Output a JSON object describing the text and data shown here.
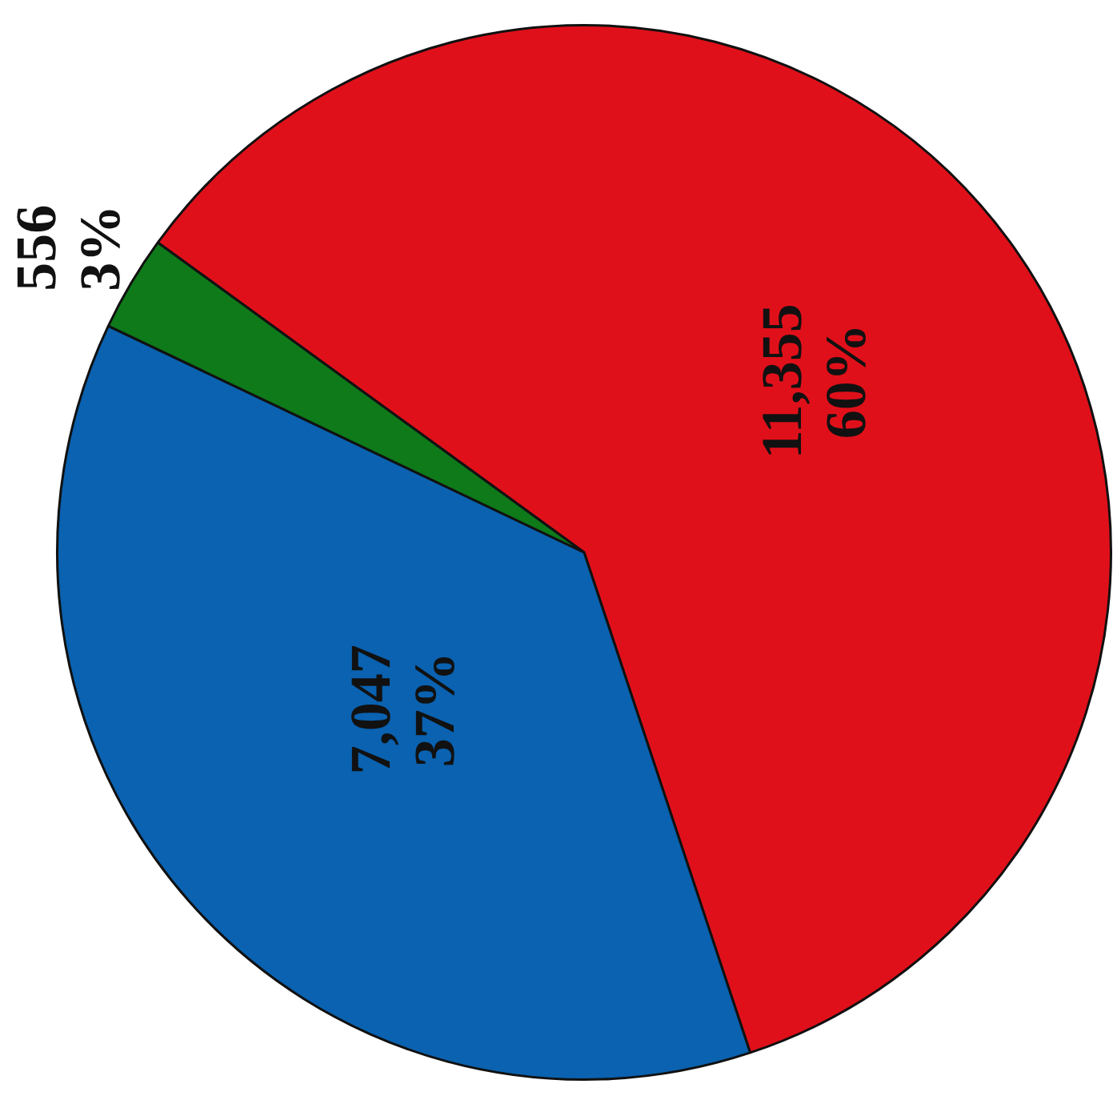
{
  "chart_data": {
    "type": "pie",
    "categories": [
      null,
      null,
      null
    ],
    "values": [
      11355,
      7047,
      556
    ],
    "colors": [
      "#e0101a",
      "#0a62b0",
      "#0e7a1a"
    ],
    "value_labels": [
      "11,355\n60%",
      "7,047\n37%",
      "556\n3%"
    ],
    "legend": false
  }
}
